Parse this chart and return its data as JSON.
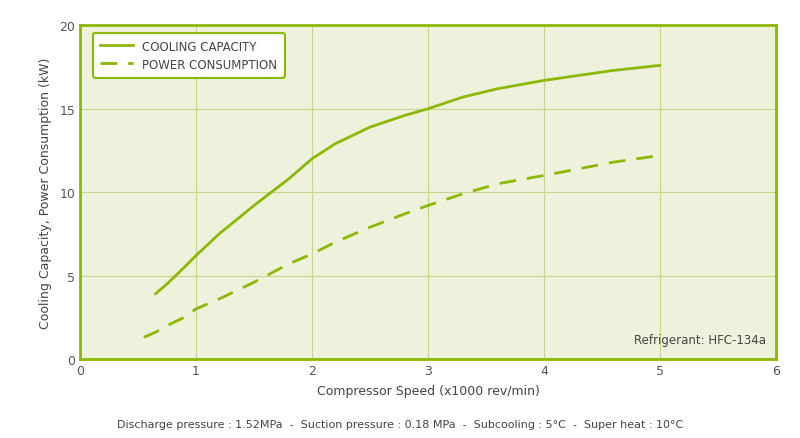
{
  "title": "",
  "xlabel": "Compressor Speed (x1000 rev/min)",
  "ylabel": "Cooling Capacity, Power Consumption (kW)",
  "xlim": [
    0,
    6
  ],
  "ylim": [
    0,
    20
  ],
  "xticks": [
    0,
    1,
    2,
    3,
    4,
    5,
    6
  ],
  "yticks": [
    0,
    5,
    10,
    15,
    20
  ],
  "line_color": "#8cb800",
  "background_color": "#eef2dc",
  "grid_color": "#c8d48a",
  "spine_color": "#8cb800",
  "cooling_x": [
    0.65,
    0.75,
    0.9,
    1.0,
    1.2,
    1.5,
    1.8,
    2.0,
    2.2,
    2.5,
    2.8,
    3.0,
    3.3,
    3.6,
    4.0,
    4.3,
    4.6,
    5.0
  ],
  "cooling_y": [
    3.9,
    4.5,
    5.5,
    6.2,
    7.5,
    9.2,
    10.8,
    12.0,
    12.9,
    13.9,
    14.6,
    15.0,
    15.7,
    16.2,
    16.7,
    17.0,
    17.3,
    17.6
  ],
  "power_x": [
    0.55,
    0.65,
    0.75,
    0.9,
    1.0,
    1.2,
    1.5,
    1.8,
    2.0,
    2.2,
    2.5,
    2.8,
    3.0,
    3.3,
    3.6,
    4.0,
    4.3,
    4.6,
    5.0
  ],
  "power_y": [
    1.3,
    1.6,
    2.0,
    2.5,
    3.0,
    3.6,
    4.6,
    5.7,
    6.3,
    7.0,
    7.9,
    8.7,
    9.2,
    9.9,
    10.5,
    11.0,
    11.4,
    11.8,
    12.2
  ],
  "legend_cooling": "COOLING CAPACITY",
  "legend_power": "POWER CONSUMPTION",
  "annotation": "Refrigerant: HFC-134a",
  "footer": "Discharge pressure : 1.52MPa  -  Suction pressure : 0.18 MPa  -  Subcooling : 5°C  -  Super heat : 10°C",
  "tick_color": "#555555",
  "label_color": "#444444"
}
